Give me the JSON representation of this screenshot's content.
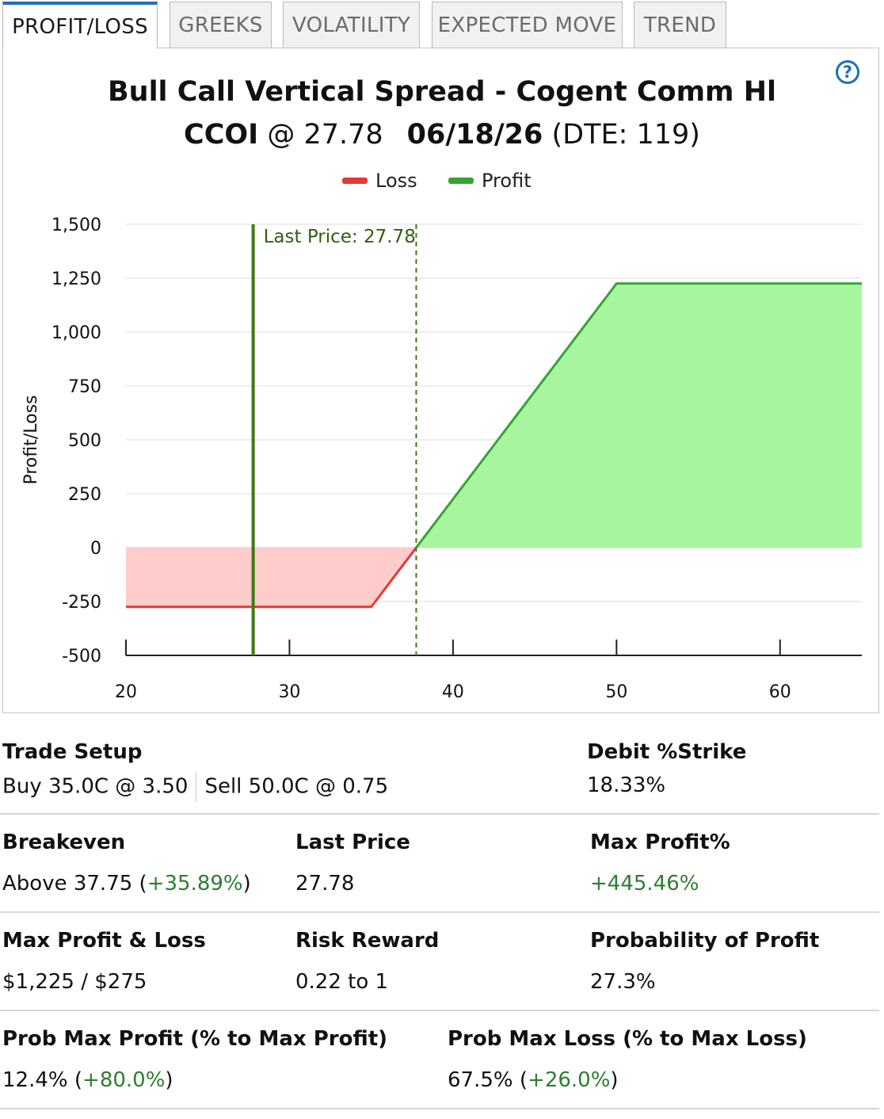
{
  "tabs": [
    {
      "label": "PROFIT/LOSS",
      "active": true
    },
    {
      "label": "GREEKS",
      "active": false
    },
    {
      "label": "VOLATILITY",
      "active": false
    },
    {
      "label": "EXPECTED MOVE",
      "active": false
    },
    {
      "label": "TREND",
      "active": false
    }
  ],
  "help_icon": "question-circle-icon",
  "header": {
    "title": "Bull Call Vertical Spread - Cogent Comm Hl",
    "symbol": "CCOI",
    "at_price": "@ 27.78",
    "expiry": "06/18/26",
    "dte": "(DTE: 119)"
  },
  "colors": {
    "accent": "#1f6fb5",
    "loss_line": "#e53935",
    "loss_fill": "#ffcccc",
    "profit_line": "#33a532",
    "profit_fill": "#a8f5a0",
    "last_price_line": "#3e7a12"
  },
  "chart_data": {
    "type": "area",
    "title": "",
    "xlabel": "",
    "ylabel": "Profit/Loss",
    "xlim": [
      20,
      65
    ],
    "ylim": [
      -500,
      1500
    ],
    "x_ticks": [
      "20",
      "30",
      "40",
      "50",
      "60"
    ],
    "y_ticks": [
      "1,500",
      "1,250",
      "1,000",
      "750",
      "500",
      "250",
      "0",
      "-250",
      "-500"
    ],
    "legend": "top-center",
    "grid": true,
    "series": [
      {
        "name": "Loss",
        "x": [
          20,
          35,
          37.75
        ],
        "y": [
          -275,
          -275,
          0
        ]
      },
      {
        "name": "Profit",
        "x": [
          37.75,
          50,
          65
        ],
        "y": [
          0,
          1225,
          1225
        ]
      }
    ],
    "last_price": 27.78,
    "last_price_label": "Last Price: 27.78",
    "breakeven": 37.75
  },
  "stats": {
    "trade_setup": {
      "label": "Trade Setup",
      "buy": "Buy 35.0C @ 3.50",
      "sell": "Sell 50.0C @ 0.75"
    },
    "debit_strike": {
      "label": "Debit %Strike",
      "value": "18.33%"
    },
    "breakeven": {
      "label": "Breakeven",
      "value": "Above 37.75",
      "pct": "+35.89%"
    },
    "last_price": {
      "label": "Last Price",
      "value": "27.78"
    },
    "max_profit_pct": {
      "label": "Max Profit%",
      "value": "+445.46%"
    },
    "max_profit_loss": {
      "label": "Max Profit & Loss",
      "value": "$1,225 / $275"
    },
    "risk_reward": {
      "label": "Risk Reward",
      "value": "0.22 to 1"
    },
    "prob_profit": {
      "label": "Probability of Profit",
      "value": "27.3%"
    },
    "prob_max_profit": {
      "label": "Prob Max Profit (% to Max Profit)",
      "value": "12.4%",
      "pct": "+80.0%"
    },
    "prob_max_loss": {
      "label": "Prob Max Loss (% to Max Loss)",
      "value": "67.5%",
      "pct": "+26.0%"
    }
  }
}
